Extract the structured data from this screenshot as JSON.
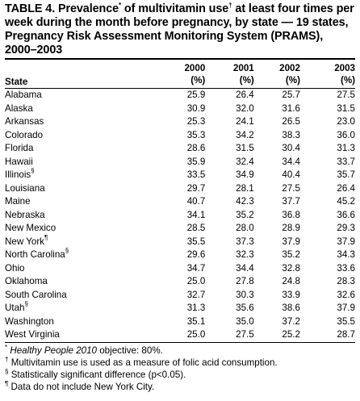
{
  "title": {
    "line_1": "TABLE 4. Prevalence",
    "mark_1": "*",
    "line_2": " of multivitamin use",
    "mark_2": "†",
    "line_3": " at least four times per week during the month before pregnancy, by state — 19 states, Pregnancy Risk Assessment Monitoring System (PRAMS), 2000–2003"
  },
  "columns": {
    "state_header": "State",
    "years": [
      {
        "year": "2000",
        "unit": "(%)"
      },
      {
        "year": "2001",
        "unit": "(%)"
      },
      {
        "year": "2002",
        "unit": "(%)"
      },
      {
        "year": "2003",
        "unit": "(%)"
      }
    ]
  },
  "rows": [
    {
      "state": "Alabama",
      "mark": "",
      "v2000": "25.9",
      "v2001": "26.4",
      "v2002": "25.7",
      "v2003": "27.5"
    },
    {
      "state": "Alaska",
      "mark": "",
      "v2000": "30.9",
      "v2001": "32.0",
      "v2002": "31.6",
      "v2003": "31.5"
    },
    {
      "state": "Arkansas",
      "mark": "",
      "v2000": "25.3",
      "v2001": "24.1",
      "v2002": "26.5",
      "v2003": "23.0"
    },
    {
      "state": "Colorado",
      "mark": "",
      "v2000": "35.3",
      "v2001": "34.2",
      "v2002": "38.3",
      "v2003": "36.0"
    },
    {
      "state": "Florida",
      "mark": "",
      "v2000": "28.6",
      "v2001": "31.5",
      "v2002": "30.4",
      "v2003": "31.3"
    },
    {
      "state": "Hawaii",
      "mark": "",
      "v2000": "35.9",
      "v2001": "32.4",
      "v2002": "34.4",
      "v2003": "33.7"
    },
    {
      "state": "Illinois",
      "mark": "§",
      "v2000": "33.5",
      "v2001": "34.9",
      "v2002": "40.4",
      "v2003": "35.7"
    },
    {
      "state": "Louisiana",
      "mark": "",
      "v2000": "29.7",
      "v2001": "28.1",
      "v2002": "27.5",
      "v2003": "26.4"
    },
    {
      "state": "Maine",
      "mark": "",
      "v2000": "40.7",
      "v2001": "42.3",
      "v2002": "37.7",
      "v2003": "45.2"
    },
    {
      "state": "Nebraska",
      "mark": "",
      "v2000": "34.1",
      "v2001": "35.2",
      "v2002": "36.8",
      "v2003": "36.6"
    },
    {
      "state": "New Mexico",
      "mark": "",
      "v2000": "28.5",
      "v2001": "28.0",
      "v2002": "28.9",
      "v2003": "29.3"
    },
    {
      "state": "New York",
      "mark": "¶",
      "v2000": "35.5",
      "v2001": "37.3",
      "v2002": "37.9",
      "v2003": "37.9"
    },
    {
      "state": "North Carolina",
      "mark": "§",
      "v2000": "29.6",
      "v2001": "32.3",
      "v2002": "35.2",
      "v2003": "34.3"
    },
    {
      "state": "Ohio",
      "mark": "",
      "v2000": "34.7",
      "v2001": "34.4",
      "v2002": "32.8",
      "v2003": "33.6"
    },
    {
      "state": "Oklahoma",
      "mark": "",
      "v2000": "25.0",
      "v2001": "27.8",
      "v2002": "24.8",
      "v2003": "28.3"
    },
    {
      "state": "South Carolina",
      "mark": "",
      "v2000": "32.7",
      "v2001": "30.3",
      "v2002": "33.9",
      "v2003": "32.6"
    },
    {
      "state": "Utah",
      "mark": "§",
      "v2000": "31.3",
      "v2001": "35.6",
      "v2002": "38.6",
      "v2003": "37.9"
    },
    {
      "state": "Washington",
      "mark": "",
      "v2000": "35.1",
      "v2001": "35.0",
      "v2002": "37.2",
      "v2003": "35.5"
    },
    {
      "state": "West Virginia",
      "mark": "",
      "v2000": "25.0",
      "v2001": "27.5",
      "v2002": "25.2",
      "v2003": "28.7"
    }
  ],
  "footnotes": [
    {
      "symbol": "*",
      "italic": "Healthy People 2010",
      "text": " objective: 80%."
    },
    {
      "symbol": "†",
      "italic": "",
      "text": "Multivitamin use is used as a measure of folic acid consumption."
    },
    {
      "symbol": "§",
      "italic": "",
      "text": "Statistically significant difference (p<0.05)."
    },
    {
      "symbol": "¶",
      "italic": "",
      "text": "Data do not include New York City."
    }
  ]
}
